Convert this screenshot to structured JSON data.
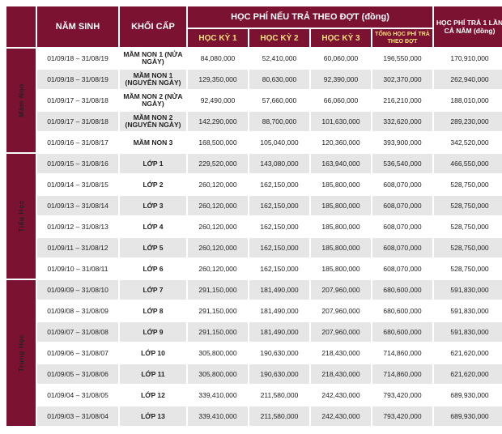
{
  "header": {
    "birth": "NĂM SINH",
    "grade": "KHỐI CẤP",
    "fee_group": "HỌC PHÍ NẾU TRẢ THEO ĐỢT (đồng)",
    "sem1": "HỌC KỲ 1",
    "sem2": "HỌC KỲ 2",
    "sem3": "HỌC KỲ 3",
    "total": "TỔNG HỌC PHÍ TRẢ THEO ĐỢT",
    "yearly": "HỌC PHÍ TRẢ 1 LẦN CẢ NĂM (đồng)"
  },
  "levels": [
    {
      "name": "Mầm Non",
      "rows": [
        {
          "birth": "01/09/18 – 31/08/19",
          "grade": "MẦM NON 1 (NỬA NGÀY)",
          "s1": "84,080,000",
          "s2": "52,410,000",
          "s3": "60,060,000",
          "total": "196,550,000",
          "year": "170,910,000"
        },
        {
          "birth": "01/09/18 – 31/08/19",
          "grade": "MẦM NON 1 (NGUYÊN NGÀY)",
          "s1": "129,350,000",
          "s2": "80,630,000",
          "s3": "92,390,000",
          "total": "302,370,000",
          "year": "262,940,000"
        },
        {
          "birth": "01/09/17 – 31/08/18",
          "grade": "MẦM NON 2 (NỬA NGÀY)",
          "s1": "92,490,000",
          "s2": "57,660,000",
          "s3": "66,060,000",
          "total": "216,210,000",
          "year": "188,010,000"
        },
        {
          "birth": "01/09/17 – 31/08/18",
          "grade": "MẦM NON 2 (NGUYÊN NGÀY)",
          "s1": "142,290,000",
          "s2": "88,700,000",
          "s3": "101,630,000",
          "total": "332,620,000",
          "year": "289,230,000"
        },
        {
          "birth": "01/09/16 – 31/08/17",
          "grade": "MẦM NON 3",
          "s1": "168,500,000",
          "s2": "105,040,000",
          "s3": "120,360,000",
          "total": "393,900,000",
          "year": "342,520,000"
        }
      ]
    },
    {
      "name": "Tiểu Học",
      "rows": [
        {
          "birth": "01/09/15 – 31/08/16",
          "grade": "LỚP 1",
          "s1": "229,520,000",
          "s2": "143,080,000",
          "s3": "163,940,000",
          "total": "536,540,000",
          "year": "466,550,000"
        },
        {
          "birth": "01/09/14 – 31/08/15",
          "grade": "LỚP 2",
          "s1": "260,120,000",
          "s2": "162,150,000",
          "s3": "185,800,000",
          "total": "608,070,000",
          "year": "528,750,000"
        },
        {
          "birth": "01/09/13 – 31/08/14",
          "grade": "LỚP 3",
          "s1": "260,120,000",
          "s2": "162,150,000",
          "s3": "185,800,000",
          "total": "608,070,000",
          "year": "528,750,000"
        },
        {
          "birth": "01/09/12 – 31/08/13",
          "grade": "LỚP 4",
          "s1": "260,120,000",
          "s2": "162,150,000",
          "s3": "185,800,000",
          "total": "608,070,000",
          "year": "528,750,000"
        },
        {
          "birth": "01/09/11 – 31/08/12",
          "grade": "LỚP 5",
          "s1": "260,120,000",
          "s2": "162,150,000",
          "s3": "185,800,000",
          "total": "608,070,000",
          "year": "528,750,000"
        },
        {
          "birth": "01/09/10 – 31/08/11",
          "grade": "LỚP 6",
          "s1": "260,120,000",
          "s2": "162,150,000",
          "s3": "185,800,000",
          "total": "608,070,000",
          "year": "528,750,000"
        }
      ]
    },
    {
      "name": "Trung Học",
      "rows": [
        {
          "birth": "01/09/09 – 31/08/10",
          "grade": "LỚP 7",
          "s1": "291,150,000",
          "s2": "181,490,000",
          "s3": "207,960,000",
          "total": "680,600,000",
          "year": "591,830,000"
        },
        {
          "birth": "01/09/08 – 31/08/09",
          "grade": "LỚP 8",
          "s1": "291,150,000",
          "s2": "181,490,000",
          "s3": "207,960,000",
          "total": "680,600,000",
          "year": "591,830,000"
        },
        {
          "birth": "01/09/07 – 31/08/08",
          "grade": "LỚP 9",
          "s1": "291,150,000",
          "s2": "181,490,000",
          "s3": "207,960,000",
          "total": "680,600,000",
          "year": "591,830,000"
        },
        {
          "birth": "01/09/06 – 31/08/07",
          "grade": "LỚP 10",
          "s1": "305,800,000",
          "s2": "190,630,000",
          "s3": "218,430,000",
          "total": "714,860,000",
          "year": "621,620,000"
        },
        {
          "birth": "01/09/05 – 31/08/06",
          "grade": "LỚP 11",
          "s1": "305,800,000",
          "s2": "190,630,000",
          "s3": "218,430,000",
          "total": "714,860,000",
          "year": "621,620,000"
        },
        {
          "birth": "01/09/04 – 31/08/05",
          "grade": "LỚP 12",
          "s1": "339,410,000",
          "s2": "211,580,000",
          "s3": "242,430,000",
          "total": "793,420,000",
          "year": "689,930,000"
        },
        {
          "birth": "01/09/03 – 31/08/04",
          "grade": "LỚP 13",
          "s1": "339,410,000",
          "s2": "211,580,000",
          "s3": "242,430,000",
          "total": "793,420,000",
          "year": "689,930,000"
        }
      ]
    }
  ],
  "colors": {
    "header_bg": "#7b1232",
    "header_accent": "#f6e27a",
    "row_alt": "#e6e6e6"
  }
}
